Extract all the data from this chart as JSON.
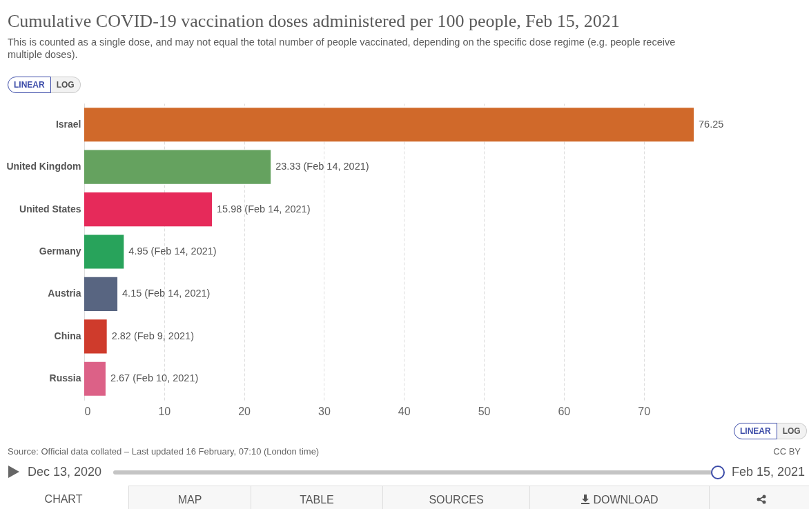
{
  "chart_data": {
    "type": "bar",
    "orientation": "horizontal",
    "title": "Cumulative COVID-19 vaccination doses administered per 100 people, Feb 15, 2021",
    "subtitle": "This is counted as a single dose, and may not equal the total number of people vaccinated, depending on the specific dose regime (e.g. people receive multiple doses).",
    "categories": [
      "Israel",
      "United Kingdom",
      "United States",
      "Germany",
      "Austria",
      "China",
      "Russia"
    ],
    "values": [
      76.25,
      23.33,
      15.98,
      4.95,
      4.15,
      2.82,
      2.67
    ],
    "colors": [
      "#d0692a",
      "#65a25f",
      "#e62a5a",
      "#28a35b",
      "#586581",
      "#cf3b2c",
      "#dc6187"
    ],
    "value_labels": [
      "76.25",
      "23.33 (Feb 14, 2021)",
      "15.98 (Feb 14, 2021)",
      "4.95 (Feb 14, 2021)",
      "4.15 (Feb 14, 2021)",
      "2.82 (Feb 9, 2021)",
      "2.67 (Feb 10, 2021)"
    ],
    "xlim": [
      0,
      76.25
    ],
    "xticks": [
      0,
      10,
      20,
      30,
      40,
      50,
      60,
      70
    ],
    "grid": "x",
    "annotations": [
      "LINEAR",
      "LOG",
      "LINEAR",
      "LOG",
      "Source: Official data collated – Last updated 16 February, 07:10 (London time)",
      "CC BY",
      "Dec 13, 2020",
      "Feb 15, 2021",
      "CHART",
      "MAP",
      "TABLE",
      "SOURCES",
      "DOWNLOAD"
    ]
  }
}
